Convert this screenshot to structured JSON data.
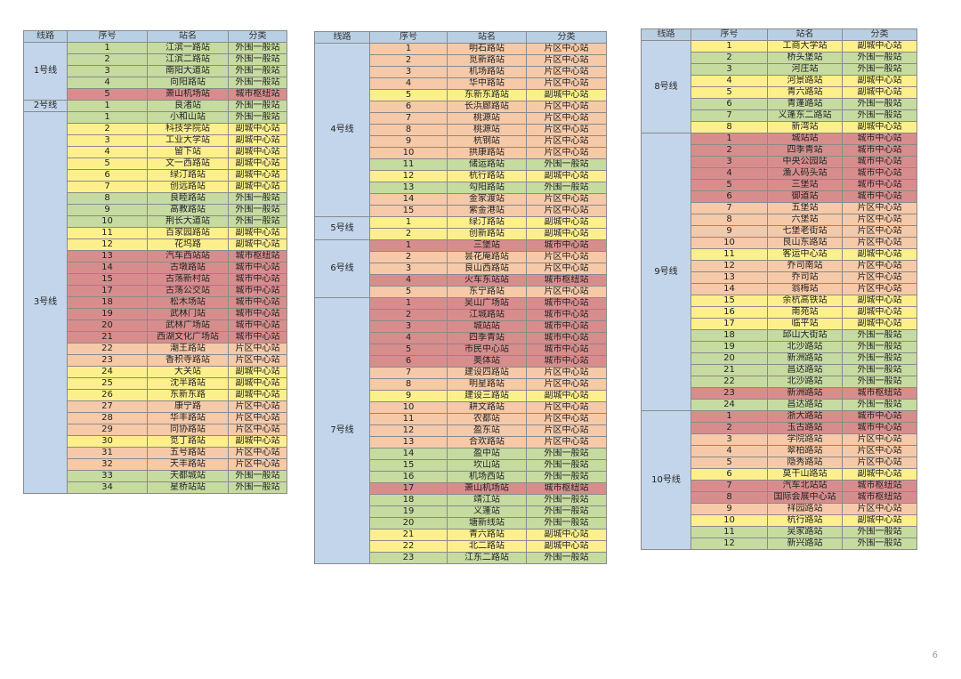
{
  "headers": {
    "line": "线路",
    "seq": "序号",
    "station": "站名",
    "category": "分类"
  },
  "page_number": "6",
  "category_colors": {
    "副城中心站": "#fdf08c",
    "外围一般站": "#c6dba0",
    "城市中心站": "#d88d8d",
    "城市枢纽站": "#d88d8d",
    "片区中心站": "#f6c9a8"
  },
  "tables": [
    {
      "lines": [
        {
          "name": "1号线",
          "stations": [
            [
              "1",
              "江滨一路站",
              "外围一般站"
            ],
            [
              "2",
              "江滨二路站",
              "外围一般站"
            ],
            [
              "3",
              "南阳大道站",
              "外围一般站"
            ],
            [
              "4",
              "向阳路站",
              "外围一般站"
            ],
            [
              "5",
              "萧山机场站",
              "城市枢纽站"
            ]
          ]
        },
        {
          "name": "2号线",
          "stations": [
            [
              "1",
              "良渚站",
              "外围一般站"
            ]
          ]
        },
        {
          "name": "3号线",
          "stations": [
            [
              "1",
              "小和山站",
              "外围一般站"
            ],
            [
              "2",
              "科技学院站",
              "副城中心站"
            ],
            [
              "3",
              "工业大学站",
              "副城中心站"
            ],
            [
              "4",
              "留下站",
              "副城中心站"
            ],
            [
              "5",
              "文一西路站",
              "副城中心站"
            ],
            [
              "6",
              "绿汀路站",
              "副城中心站"
            ],
            [
              "7",
              "创远路站",
              "副城中心站"
            ],
            [
              "8",
              "良睦路站",
              "外围一般站"
            ],
            [
              "9",
              "高教路站",
              "外围一般站"
            ],
            [
              "10",
              "荆长大道站",
              "外围一般站"
            ],
            [
              "11",
              "百家园路站",
              "副城中心站"
            ],
            [
              "12",
              "花坞路",
              "副城中心站"
            ],
            [
              "13",
              "汽车西站站",
              "城市枢纽站"
            ],
            [
              "14",
              "古墩路站",
              "城市中心站"
            ],
            [
              "15",
              "古荡新村站",
              "城市中心站"
            ],
            [
              "17",
              "古荡公交站",
              "城市中心站"
            ],
            [
              "18",
              "松木场站",
              "城市中心站"
            ],
            [
              "19",
              "武林门站",
              "城市中心站"
            ],
            [
              "20",
              "武林广场站",
              "城市中心站"
            ],
            [
              "21",
              "西湖文化广场站",
              "城市中心站"
            ],
            [
              "22",
              "潮王路站",
              "片区中心站"
            ],
            [
              "23",
              "香积寺路站",
              "片区中心站"
            ],
            [
              "24",
              "大关站",
              "副城中心站"
            ],
            [
              "25",
              "沈半路站",
              "副城中心站"
            ],
            [
              "26",
              "东新东路",
              "副城中心站"
            ],
            [
              "27",
              "康宁路",
              "片区中心站"
            ],
            [
              "28",
              "华丰路站",
              "片区中心站"
            ],
            [
              "29",
              "同协路站",
              "片区中心站"
            ],
            [
              "30",
              "笕丁路站",
              "副城中心站"
            ],
            [
              "31",
              "五号路站",
              "片区中心站"
            ],
            [
              "32",
              "天丰路站",
              "片区中心站"
            ],
            [
              "33",
              "天都城站",
              "外围一般站"
            ],
            [
              "34",
              "星桥站站",
              "外围一般站"
            ]
          ]
        }
      ]
    },
    {
      "lines": [
        {
          "name": "4号线",
          "stations": [
            [
              "1",
              "明石路站",
              "片区中心站"
            ],
            [
              "2",
              "觅新路站",
              "片区中心站"
            ],
            [
              "3",
              "机场路站",
              "片区中心站"
            ],
            [
              "4",
              "华中路站",
              "片区中心站"
            ],
            [
              "5",
              "东新东路站",
              "副城中心站"
            ],
            [
              "6",
              "长浜廊路站",
              "片区中心站"
            ],
            [
              "7",
              "桃源站",
              "片区中心站"
            ],
            [
              "8",
              "桃源站",
              "片区中心站"
            ],
            [
              "9",
              "杭钢站",
              "片区中心站"
            ],
            [
              "10",
              "拱康路站",
              "片区中心站"
            ],
            [
              "11",
              "储运路站",
              "外围一般站"
            ],
            [
              "12",
              "杭行路站",
              "副城中心站"
            ],
            [
              "13",
              "勾阳路站",
              "外围一般站"
            ],
            [
              "14",
              "金家渡站",
              "片区中心站"
            ],
            [
              "15",
              "紫金港站",
              "片区中心站"
            ]
          ]
        },
        {
          "name": "5号线",
          "stations": [
            [
              "1",
              "绿汀路站",
              "副城中心站"
            ],
            [
              "2",
              "创新路站",
              "副城中心站"
            ]
          ]
        },
        {
          "name": "6号线",
          "stations": [
            [
              "1",
              "三堡站",
              "城市中心站"
            ],
            [
              "2",
              "昙花庵路站",
              "片区中心站"
            ],
            [
              "3",
              "良山西路站",
              "片区中心站"
            ],
            [
              "4",
              "火车东站站",
              "城市枢纽站"
            ],
            [
              "5",
              "东宁路站",
              "片区中心站"
            ]
          ]
        },
        {
          "name": "7号线",
          "stations": [
            [
              "1",
              "吴山广场站",
              "城市中心站"
            ],
            [
              "2",
              "江城路站",
              "城市中心站"
            ],
            [
              "3",
              "城站站",
              "城市中心站"
            ],
            [
              "4",
              "四季青站",
              "城市中心站"
            ],
            [
              "5",
              "市民中心站",
              "城市中心站"
            ],
            [
              "6",
              "奥体站",
              "城市中心站"
            ],
            [
              "7",
              "建设四路站",
              "片区中心站"
            ],
            [
              "8",
              "明星路站",
              "片区中心站"
            ],
            [
              "9",
              "建设三路站",
              "副城中心站"
            ],
            [
              "10",
              "耕文路站",
              "片区中心站"
            ],
            [
              "11",
              "农都站",
              "片区中心站"
            ],
            [
              "12",
              "盈东站",
              "片区中心站"
            ],
            [
              "13",
              "合欢路站",
              "片区中心站"
            ],
            [
              "14",
              "盈中站",
              "外围一般站"
            ],
            [
              "15",
              "坎山站",
              "外围一般站"
            ],
            [
              "16",
              "机场西站",
              "外围一般站"
            ],
            [
              "17",
              "萧山机场站",
              "城市枢纽站"
            ],
            [
              "18",
              "靖江站",
              "外围一般站"
            ],
            [
              "19",
              "义蓬站",
              "外围一般站"
            ],
            [
              "20",
              "塘新线站",
              "外围一般站"
            ],
            [
              "21",
              "青六路站",
              "副城中心站"
            ],
            [
              "22",
              "北二路站",
              "副城中心站"
            ],
            [
              "23",
              "江东二路站",
              "外围一般站"
            ]
          ]
        }
      ]
    },
    {
      "lines": [
        {
          "name": "8号线",
          "stations": [
            [
              "1",
              "工商大学站",
              "副城中心站"
            ],
            [
              "2",
              "桥头堡站",
              "外围一般站"
            ],
            [
              "3",
              "河庄站",
              "外围一般站"
            ],
            [
              "4",
              "河景路站",
              "副城中心站"
            ],
            [
              "5",
              "青六路站",
              "副城中心站"
            ],
            [
              "6",
              "青蓬路站",
              "外围一般站"
            ],
            [
              "7",
              "义蓬东二路站",
              "外围一般站"
            ],
            [
              "8",
              "新湾站",
              "副城中心站"
            ]
          ]
        },
        {
          "name": "9号线",
          "stations": [
            [
              "1",
              "城站站",
              "城市中心站"
            ],
            [
              "2",
              "四季青站",
              "城市中心站"
            ],
            [
              "3",
              "中央公园站",
              "城市中心站"
            ],
            [
              "4",
              "渔人码头站",
              "城市中心站"
            ],
            [
              "5",
              "三堡站",
              "城市中心站"
            ],
            [
              "6",
              "御道站",
              "城市中心站"
            ],
            [
              "7",
              "五堡站",
              "片区中心站"
            ],
            [
              "8",
              "六堡站",
              "片区中心站"
            ],
            [
              "9",
              "七堡老街站",
              "片区中心站"
            ],
            [
              "10",
              "艮山东路站",
              "片区中心站"
            ],
            [
              "11",
              "客运中心站",
              "副城中心站"
            ],
            [
              "12",
              "乔司南站",
              "片区中心站"
            ],
            [
              "13",
              "乔司站",
              "片区中心站"
            ],
            [
              "14",
              "翁梅站",
              "片区中心站"
            ],
            [
              "15",
              "余杭高铁站",
              "副城中心站"
            ],
            [
              "16",
              "南苑站",
              "副城中心站"
            ],
            [
              "17",
              "临平站",
              "副城中心站"
            ],
            [
              "18",
              "邱山大街站",
              "外围一般站"
            ],
            [
              "19",
              "北沙路站",
              "外围一般站"
            ],
            [
              "20",
              "新洲路站",
              "外围一般站"
            ],
            [
              "21",
              "昌达路站",
              "外围一般站"
            ],
            [
              "22",
              "北沙路站",
              "外围一般站"
            ],
            [
              "23",
              "新洲路站",
              "城市枢纽站"
            ],
            [
              "24",
              "昌达路站",
              "外围一般站"
            ]
          ]
        },
        {
          "name": "10号线",
          "stations": [
            [
              "1",
              "浙大路站",
              "城市中心站"
            ],
            [
              "2",
              "玉古路站",
              "城市中心站"
            ],
            [
              "3",
              "学院路站",
              "片区中心站"
            ],
            [
              "4",
              "翠柏路站",
              "片区中心站"
            ],
            [
              "5",
              "隐秀路站",
              "片区中心站"
            ],
            [
              "6",
              "莫干山路站",
              "副城中心站"
            ],
            [
              "7",
              "汽车北站站",
              "城市枢纽站"
            ],
            [
              "8",
              "国际会展中心站",
              "城市枢纽站"
            ],
            [
              "9",
              "祥园路站",
              "片区中心站"
            ],
            [
              "10",
              "杭行路站",
              "副城中心站"
            ],
            [
              "11",
              "吴家路站",
              "外围一般站"
            ],
            [
              "12",
              "新兴路站",
              "外围一般站"
            ]
          ]
        }
      ]
    }
  ]
}
